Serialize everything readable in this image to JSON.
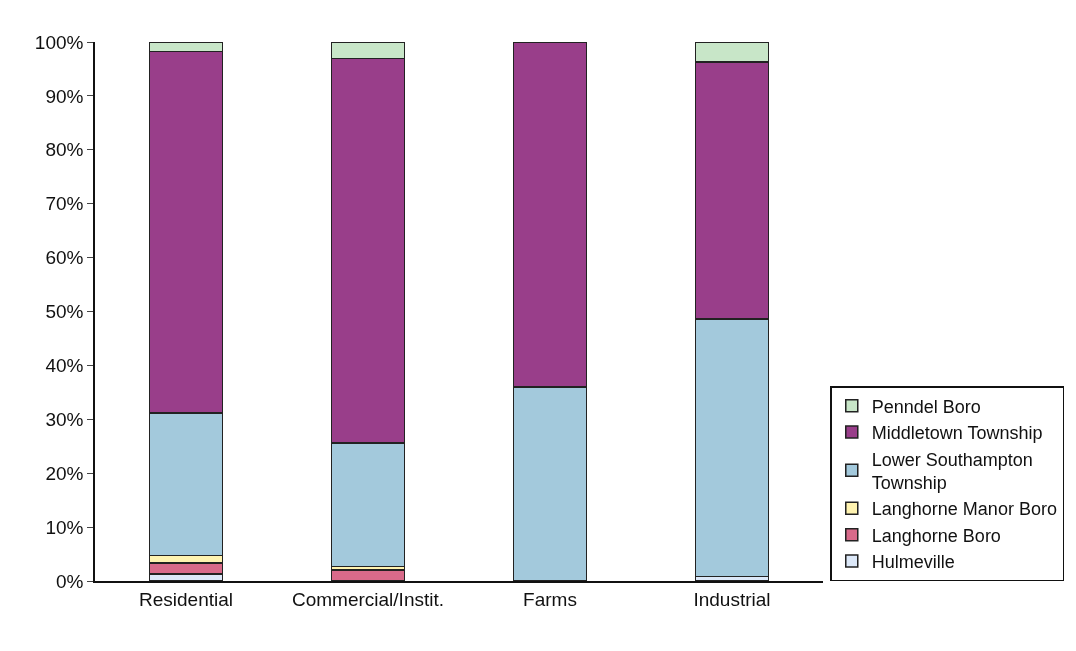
{
  "chart_data": {
    "type": "bar",
    "stacked": true,
    "categories": [
      "Residential",
      "Commercial/Instit.",
      "Farms",
      "Industrial"
    ],
    "series": [
      {
        "name": "Hulmeville",
        "color": "#dce8f8",
        "values": [
          1.3,
          null,
          null,
          0.8
        ]
      },
      {
        "name": "Langhorne Boro",
        "color": "#d86a8a",
        "values": [
          2.0,
          2.0,
          null,
          null
        ]
      },
      {
        "name": "Langhorne Manor Boro",
        "color": "#fff3b0",
        "values": [
          1.4,
          0.7,
          null,
          null
        ]
      },
      {
        "name": "Lower Southampton Township",
        "color": "#a3c9dc",
        "values": [
          26.5,
          22.9,
          36.0,
          47.8
        ]
      },
      {
        "name": "Middletown Township",
        "color": "#993e8a",
        "values": [
          67.0,
          71.3,
          64.0,
          47.7
        ]
      },
      {
        "name": "Penndel Boro",
        "color": "#c8e6c8",
        "values": [
          1.8,
          3.1,
          null,
          3.7
        ]
      }
    ],
    "ylim": [
      0,
      100
    ],
    "yticks": [
      {
        "value": 0,
        "label": "0%"
      },
      {
        "value": 10,
        "label": "10%"
      },
      {
        "value": 20,
        "label": "20%"
      },
      {
        "value": 30,
        "label": "30%"
      },
      {
        "value": 40,
        "label": "40%"
      },
      {
        "value": 50,
        "label": "50%"
      },
      {
        "value": 60,
        "label": "60%"
      },
      {
        "value": 70,
        "label": "70%"
      },
      {
        "value": 80,
        "label": "80%"
      },
      {
        "value": 90,
        "label": "90%"
      },
      {
        "value": 100,
        "label": "100%"
      }
    ],
    "legend": "right",
    "grid": false
  }
}
